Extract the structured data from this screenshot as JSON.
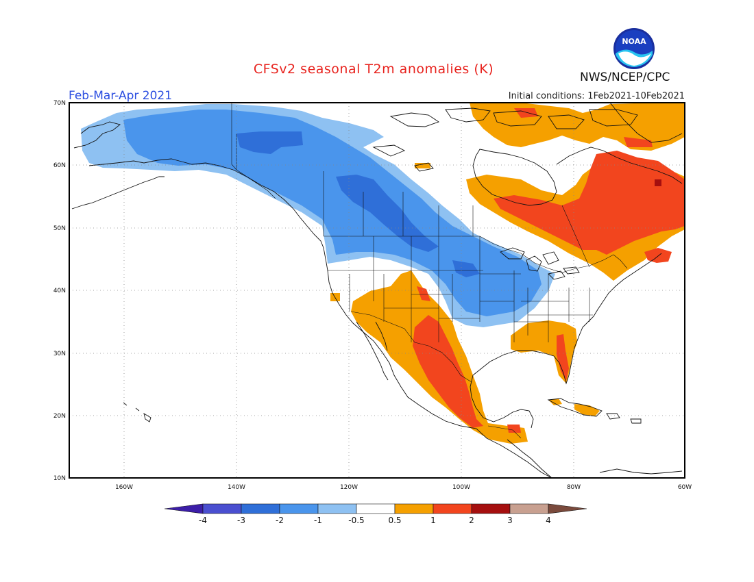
{
  "header": {
    "title": "CFSv2 seasonal T2m anomalies (K)",
    "period": "Feb-Mar-Apr 2021",
    "initial_conditions": "Initial conditions: 1Feb2021-10Feb2021",
    "agency": "NWS/NCEP/CPC",
    "logo_text": "NOAA"
  },
  "axes": {
    "lat_labels": [
      "70N",
      "60N",
      "50N",
      "40N",
      "30N",
      "20N",
      "10N"
    ],
    "lon_labels": [
      "160W",
      "140W",
      "120W",
      "100W",
      "80W",
      "60W"
    ]
  },
  "colorbar": {
    "labels": [
      "-4",
      "-3",
      "-2",
      "-1",
      "-0.5",
      "0.5",
      "1",
      "2",
      "3",
      "4"
    ],
    "colors": [
      "#3c1ea8",
      "#4a4fd0",
      "#2f6fd8",
      "#4a95ec",
      "#8ec1f2",
      "#ffffff",
      "#f5a000",
      "#f2451e",
      "#a50f0f",
      "#c8a090",
      "#7a4a3c"
    ]
  },
  "anomaly_regions": [
    {
      "name": "Alaska and western Canada",
      "category": "-1 to -0.5"
    },
    {
      "name": "Canadian Prairies and northern Plains",
      "category": "-2 to -1"
    },
    {
      "name": "Southwest US and Mexico",
      "category": "0.5 to 1"
    },
    {
      "name": "Eastern Mexico and Texas",
      "category": "1 to 2"
    },
    {
      "name": "Quebec and Labrador",
      "category": "1 to 2"
    },
    {
      "name": "Southeast US and Florida",
      "category": "0.5 to 2"
    }
  ]
}
